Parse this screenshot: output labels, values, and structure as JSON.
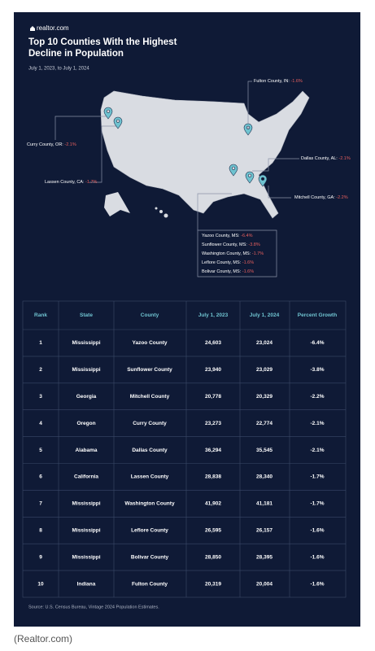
{
  "header": {
    "brand": "realtor.com",
    "title_line1": "Top 10 Counties With the Highest",
    "title_line2": "Decline in Population",
    "subtitle": "July 1, 2023, to July 1, 2024"
  },
  "map": {
    "callouts": [
      {
        "name": "Fulton County, IN:",
        "value": "-1.6%"
      },
      {
        "name": "Curry County, OR:",
        "value": "-2.1%"
      },
      {
        "name": "Lassen County, CA:",
        "value": "-1.7%"
      },
      {
        "name": "Dallas County, AL:",
        "value": "-2.1%"
      },
      {
        "name": "Mitchell County, GA:",
        "value": "-2.2%"
      }
    ],
    "ms_group": [
      {
        "name": "Yazoo County, MS:",
        "value": "-6.4%"
      },
      {
        "name": "Sunflower County, MS:",
        "value": "-3.8%"
      },
      {
        "name": "Washington County, MS:",
        "value": "-1.7%"
      },
      {
        "name": "Leflore County, MS:",
        "value": "-1.6%"
      },
      {
        "name": "Bolivar County, MS:",
        "value": "-1.6%"
      }
    ]
  },
  "table": {
    "headers": [
      "Rank",
      "State",
      "County",
      "July 1, 2023",
      "July 1, 2024",
      "Percent Growth"
    ],
    "rows": [
      [
        "1",
        "Mississippi",
        "Yazoo County",
        "24,603",
        "23,024",
        "-6.4%"
      ],
      [
        "2",
        "Mississippi",
        "Sunflower County",
        "23,940",
        "23,029",
        "-3.8%"
      ],
      [
        "3",
        "Georgia",
        "Mitchell County",
        "20,778",
        "20,329",
        "-2.2%"
      ],
      [
        "4",
        "Oregon",
        "Curry County",
        "23,273",
        "22,774",
        "-2.1%"
      ],
      [
        "5",
        "Alabama",
        "Dallas County",
        "36,294",
        "35,545",
        "-2.1%"
      ],
      [
        "6",
        "California",
        "Lassen County",
        "28,838",
        "28,340",
        "-1.7%"
      ],
      [
        "7",
        "Mississippi",
        "Washington County",
        "41,902",
        "41,181",
        "-1.7%"
      ],
      [
        "8",
        "Mississippi",
        "Leflore County",
        "26,595",
        "26,157",
        "-1.6%"
      ],
      [
        "9",
        "Mississippi",
        "Bolivar County",
        "28,850",
        "28,395",
        "-1.6%"
      ],
      [
        "10",
        "Indiana",
        "Fulton County",
        "20,319",
        "20,004",
        "-1.6%"
      ]
    ]
  },
  "source": "Source: U.S. Census Bureau, Vintage 2024 Population Estimates.",
  "caption": "(Realtor.com)"
}
